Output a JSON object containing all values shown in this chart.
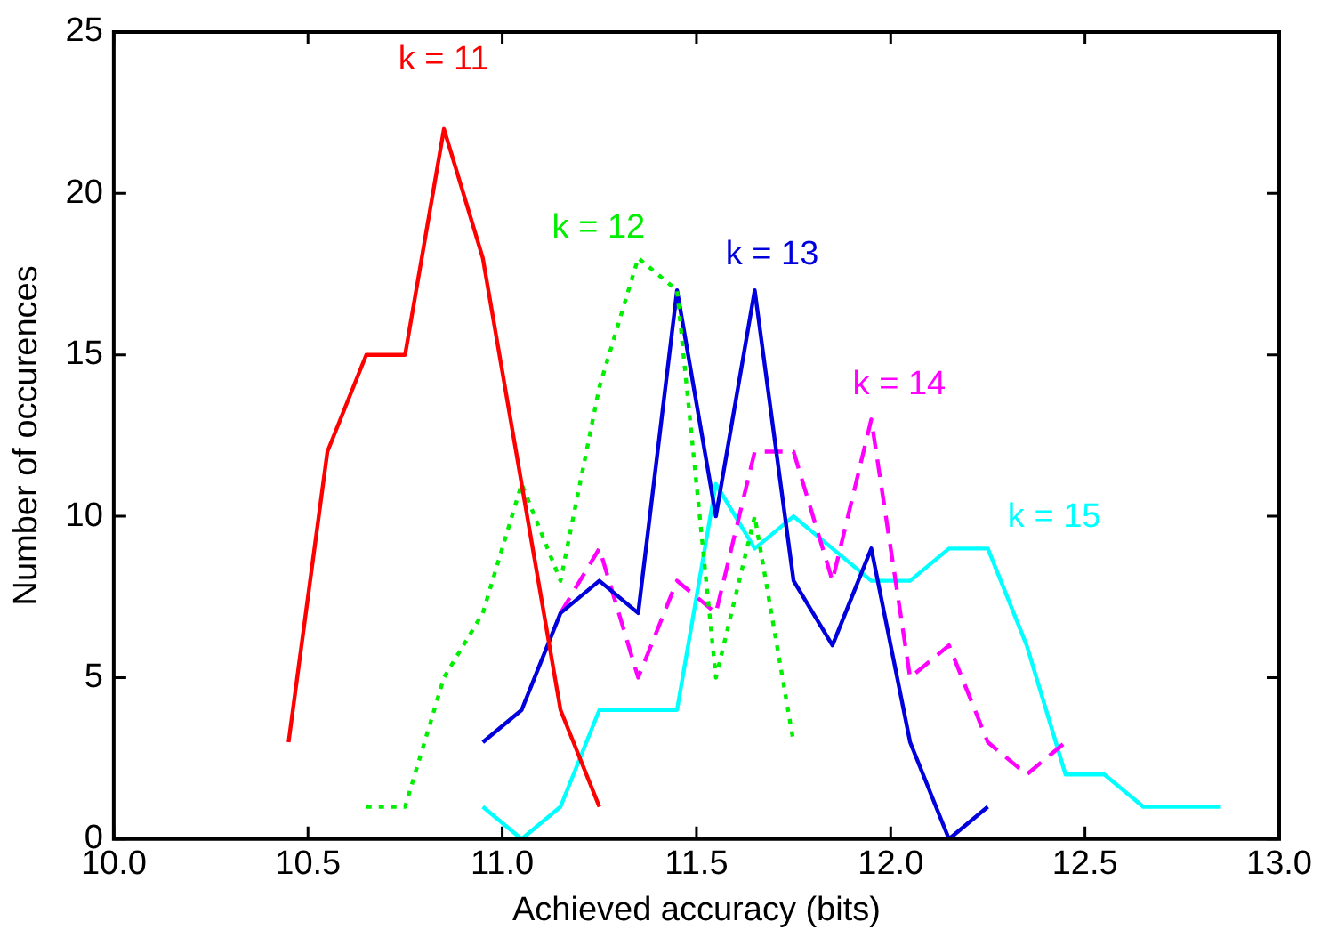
{
  "chart_data": {
    "type": "line",
    "xlabel": "Achieved accuracy (bits)",
    "ylabel": "Number of occurences",
    "xlim": [
      10.0,
      13.0
    ],
    "xticks": [
      {
        "value": 10,
        "label": "10.0"
      },
      {
        "value": 10.5,
        "label": "10.5"
      },
      {
        "value": 11,
        "label": "11.0"
      },
      {
        "value": 11.5,
        "label": "11.5"
      },
      {
        "value": 12,
        "label": "12.0"
      },
      {
        "value": 12.5,
        "label": "12.5"
      },
      {
        "value": 13,
        "label": "13.0"
      }
    ],
    "ylim": [
      0,
      25
    ],
    "yticks": [
      0,
      5,
      10,
      15,
      20,
      25
    ],
    "grid": false,
    "legend": false,
    "marker": "none",
    "series": [
      {
        "name": "k = 11",
        "color": "#ff0000",
        "line_style": "solid",
        "x": [
          10.45,
          10.55,
          10.65,
          10.75,
          10.85,
          10.95,
          11.05,
          11.15,
          11.25
        ],
        "values": [
          3,
          12,
          15,
          15,
          22,
          18,
          11,
          4,
          1
        ]
      },
      {
        "name": "k = 12",
        "color": "#00ee00",
        "line_style": "dotted",
        "x": [
          10.65,
          10.75,
          10.85,
          10.95,
          11.05,
          11.15,
          11.25,
          11.35,
          11.45,
          11.55,
          11.65,
          11.75
        ],
        "values": [
          1,
          1,
          5,
          7,
          11,
          8,
          14,
          18,
          17,
          5,
          10,
          3
        ]
      },
      {
        "name": "k = 13",
        "color": "#0000dd",
        "line_style": "solid",
        "x": [
          10.95,
          11.05,
          11.15,
          11.25,
          11.35,
          11.45,
          11.55,
          11.65,
          11.75,
          11.85,
          11.95,
          12.05,
          12.15,
          12.25
        ],
        "values": [
          3,
          4,
          7,
          8,
          7,
          17,
          10,
          17,
          8,
          6,
          9,
          3,
          0,
          1
        ]
      },
      {
        "name": "k = 14",
        "color": "#ff00ff",
        "line_style": "dashed",
        "x": [
          11.15,
          11.25,
          11.35,
          11.45,
          11.55,
          11.65,
          11.75,
          11.85,
          11.95,
          12.05,
          12.15,
          12.25,
          12.35,
          12.45
        ],
        "values": [
          7,
          9,
          5,
          8,
          7,
          12,
          12,
          8,
          13,
          5,
          6,
          3,
          2,
          3
        ]
      },
      {
        "name": "k = 15",
        "color": "#00ffff",
        "line_style": "solid",
        "x": [
          10.95,
          11.05,
          11.15,
          11.25,
          11.35,
          11.45,
          11.55,
          11.65,
          11.75,
          11.85,
          11.95,
          12.05,
          12.15,
          12.25,
          12.35,
          12.45,
          12.55,
          12.65,
          12.75,
          12.85
        ],
        "values": [
          1,
          0,
          1,
          4,
          4,
          4,
          11,
          9,
          10,
          9,
          8,
          8,
          9,
          9,
          6,
          2,
          2,
          1,
          1,
          1
        ]
      }
    ]
  }
}
